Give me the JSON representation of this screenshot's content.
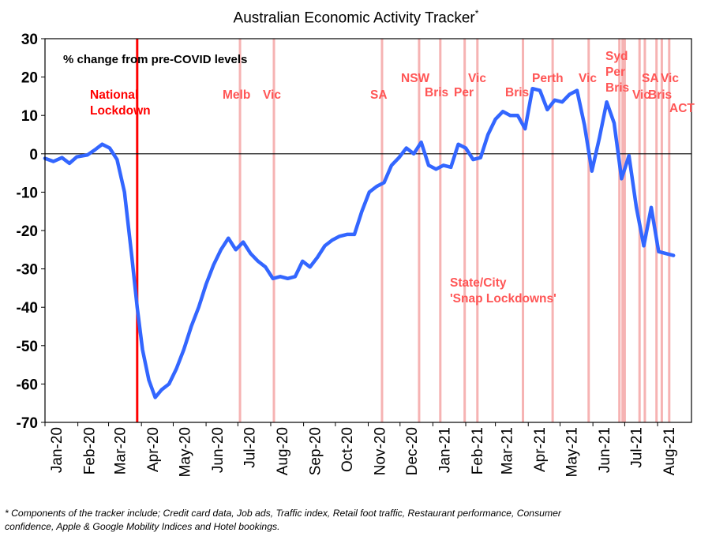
{
  "chart_data": {
    "type": "line",
    "title": "Australian Economic Activity Tracker",
    "title_marker": "*",
    "subtitle": "% change from pre-COVID levels",
    "xlabel": "",
    "ylabel": "",
    "ylim": [
      -70,
      30
    ],
    "yticks": [
      30,
      20,
      10,
      0,
      -10,
      -20,
      -30,
      -40,
      -50,
      -60,
      -70
    ],
    "grid": false,
    "legend": "none",
    "x_tick_labels": [
      "Jan-20",
      "Feb-20",
      "Mar-20",
      "Apr-20",
      "May-20",
      "Jun-20",
      "Jul-20",
      "Aug-20",
      "Sep-20",
      "Oct-20",
      "Nov-20",
      "Dec-20",
      "Jan-21",
      "Feb-21",
      "Mar-21",
      "Apr-21",
      "May-21",
      "Jun-21",
      "Jul-21",
      "Aug-21"
    ],
    "x_start": "2020-01-01",
    "series": [
      {
        "color": "#3366ff",
        "points": [
          [
            "2020-01-01",
            -1.2
          ],
          [
            "2020-01-09",
            -2
          ],
          [
            "2020-01-17",
            -1
          ],
          [
            "2020-01-24",
            -2.5
          ],
          [
            "2020-01-31",
            -0.8
          ],
          [
            "2020-02-10",
            -0.3
          ],
          [
            "2020-02-17",
            1
          ],
          [
            "2020-02-24",
            2.5
          ],
          [
            "2020-03-02",
            1.5
          ],
          [
            "2020-03-09",
            -1.5
          ],
          [
            "2020-03-16",
            -10
          ],
          [
            "2020-03-23",
            -27
          ],
          [
            "2020-03-28",
            -40
          ],
          [
            "2020-04-02",
            -51
          ],
          [
            "2020-04-08",
            -59
          ],
          [
            "2020-04-14",
            -63.5
          ],
          [
            "2020-04-20",
            -61.5
          ],
          [
            "2020-04-27",
            -60
          ],
          [
            "2020-05-04",
            -56
          ],
          [
            "2020-05-11",
            -51
          ],
          [
            "2020-05-18",
            -45
          ],
          [
            "2020-05-25",
            -40
          ],
          [
            "2020-06-01",
            -34
          ],
          [
            "2020-06-08",
            -29
          ],
          [
            "2020-06-15",
            -25
          ],
          [
            "2020-06-22",
            -22
          ],
          [
            "2020-06-29",
            -25
          ],
          [
            "2020-07-06",
            -23
          ],
          [
            "2020-07-13",
            -26
          ],
          [
            "2020-07-20",
            -28
          ],
          [
            "2020-07-27",
            -29.5
          ],
          [
            "2020-08-03",
            -32.5
          ],
          [
            "2020-08-10",
            -32
          ],
          [
            "2020-08-17",
            -32.5
          ],
          [
            "2020-08-24",
            -32
          ],
          [
            "2020-08-31",
            -28
          ],
          [
            "2020-09-07",
            -29.5
          ],
          [
            "2020-09-14",
            -27
          ],
          [
            "2020-09-21",
            -24
          ],
          [
            "2020-09-28",
            -22.5
          ],
          [
            "2020-10-05",
            -21.5
          ],
          [
            "2020-10-12",
            -21
          ],
          [
            "2020-10-19",
            -21
          ],
          [
            "2020-10-26",
            -15
          ],
          [
            "2020-11-02",
            -10
          ],
          [
            "2020-11-09",
            -8.5
          ],
          [
            "2020-11-16",
            -7.5
          ],
          [
            "2020-11-23",
            -3
          ],
          [
            "2020-11-30",
            -1
          ],
          [
            "2020-12-07",
            1.5
          ],
          [
            "2020-12-14",
            0
          ],
          [
            "2020-12-21",
            3
          ],
          [
            "2020-12-28",
            -3
          ],
          [
            "2021-01-04",
            -4
          ],
          [
            "2021-01-11",
            -3
          ],
          [
            "2021-01-18",
            -3.5
          ],
          [
            "2021-01-25",
            2.5
          ],
          [
            "2021-02-01",
            1.5
          ],
          [
            "2021-02-08",
            -1.5
          ],
          [
            "2021-02-15",
            -1
          ],
          [
            "2021-02-22",
            5
          ],
          [
            "2021-03-01",
            9
          ],
          [
            "2021-03-08",
            11
          ],
          [
            "2021-03-15",
            10
          ],
          [
            "2021-03-22",
            10
          ],
          [
            "2021-03-29",
            6.5
          ],
          [
            "2021-04-05",
            17
          ],
          [
            "2021-04-12",
            16.5
          ],
          [
            "2021-04-19",
            11.5
          ],
          [
            "2021-04-26",
            14
          ],
          [
            "2021-05-03",
            13.5
          ],
          [
            "2021-05-10",
            15.5
          ],
          [
            "2021-05-17",
            16.5
          ],
          [
            "2021-05-24",
            7.5
          ],
          [
            "2021-05-31",
            -4.5
          ],
          [
            "2021-06-07",
            4
          ],
          [
            "2021-06-14",
            13.5
          ],
          [
            "2021-06-21",
            8
          ],
          [
            "2021-06-28",
            -6.5
          ],
          [
            "2021-07-05",
            -0.5
          ],
          [
            "2021-07-12",
            -14
          ],
          [
            "2021-07-19",
            -24
          ],
          [
            "2021-07-26",
            -14
          ],
          [
            "2021-08-02",
            -25.5
          ],
          [
            "2021-08-09",
            -26
          ],
          [
            "2021-08-16",
            -26.5
          ]
        ]
      }
    ],
    "lockdowns": {
      "national": {
        "date": "2020-03-28",
        "color": "#ff0000",
        "label_lines": [
          "National",
          "Lockdown"
        ]
      },
      "snap_color": "#f6b3b3",
      "snap_label_color": "#ff5555",
      "snap": [
        {
          "date": "2020-07-03",
          "label": "Melb"
        },
        {
          "date": "2020-08-04",
          "label": "Vic"
        },
        {
          "date": "2020-11-14",
          "label": "SA"
        },
        {
          "date": "2020-12-19",
          "label": "NSW"
        },
        {
          "date": "2021-01-08",
          "label": "Bris"
        },
        {
          "date": "2021-01-31",
          "label": "Per"
        },
        {
          "date": "2021-02-12",
          "label": "Vic"
        },
        {
          "date": "2021-03-27",
          "label": "Bris"
        },
        {
          "date": "2021-04-24",
          "label": "Perth"
        },
        {
          "date": "2021-05-28",
          "label": "Vic"
        },
        {
          "date": "2021-06-26",
          "label": "Syd"
        },
        {
          "date": "2021-06-29",
          "label": "Per"
        },
        {
          "date": "2021-07-01",
          "label": "Bris"
        },
        {
          "date": "2021-07-15",
          "label": "Vic"
        },
        {
          "date": "2021-07-20",
          "label": "SA"
        },
        {
          "date": "2021-07-31",
          "label": "Bris"
        },
        {
          "date": "2021-08-05",
          "label": "Vic"
        },
        {
          "date": "2021-08-12",
          "label": "ACT"
        }
      ]
    },
    "annotation_lines": [
      "State/City",
      "'Snap Lockdowns'"
    ]
  },
  "footnote_lines": [
    "* Components of the tracker include; Credit card data, Job ads, Traffic index, Retail foot traffic, Restaurant performance, Consumer",
    "confidence, Apple & Google Mobility Indices and Hotel bookings."
  ]
}
